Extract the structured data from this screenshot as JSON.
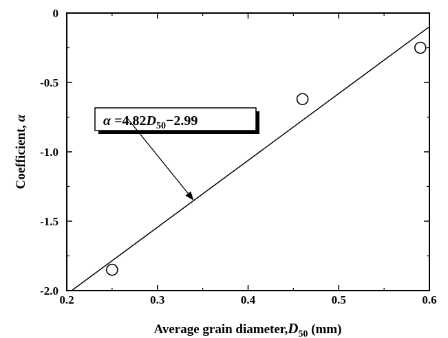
{
  "chart_data": {
    "type": "scatter",
    "xlabel": {
      "main": "Average grain diameter,",
      "var": "D",
      "sub": "50",
      "unit": " (mm)"
    },
    "ylabel": {
      "main": "Coefficient, ",
      "var": "α"
    },
    "xlim": [
      0.2,
      0.6
    ],
    "ylim": [
      -2.0,
      0
    ],
    "xticks": [
      0.2,
      0.3,
      0.4,
      0.5,
      0.6
    ],
    "xtick_labels": [
      "0.2",
      "0.3",
      "0.4",
      "0.5",
      "0.6"
    ],
    "yticks": [
      0,
      -0.5,
      -1.0,
      -1.5,
      -2.0
    ],
    "ytick_labels": [
      "0",
      "-0.5",
      "-1.0",
      "-1.5",
      "-2.0"
    ],
    "grid": false,
    "series": [
      {
        "marker": "open-circle",
        "x": [
          0.25,
          0.46,
          0.59
        ],
        "y": [
          -1.85,
          -0.62,
          -0.25
        ]
      }
    ],
    "fit_line": {
      "slope": 4.82,
      "intercept": -2.99,
      "x_range": [
        0.2,
        0.6
      ]
    },
    "annotation": {
      "alpha": "α",
      "eq": " =4.82",
      "var": "D",
      "sub": "50",
      "minus": "−",
      "const": "2.99",
      "arrow_target": [
        0.34,
        -1.35
      ]
    }
  }
}
